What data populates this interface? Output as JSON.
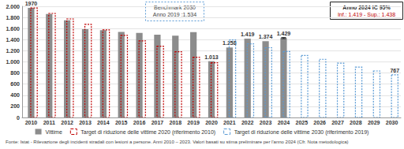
{
  "chart_data": {
    "type": "bar",
    "categories": [
      "2010",
      "2011",
      "2012",
      "2013",
      "2014",
      "2015",
      "2016",
      "2017",
      "2018",
      "2019",
      "2020",
      "2021",
      "2022",
      "2023",
      "2024",
      "2025",
      "2026",
      "2027",
      "2028",
      "2029",
      "2030"
    ],
    "series": [
      {
        "name": "Vittime",
        "type": "bar",
        "color": "#8c8c8c",
        "values": [
          1970,
          1860,
          1750,
          1590,
          1570,
          1540,
          1520,
          1490,
          1470,
          1534,
          1013,
          1258,
          1419,
          1374,
          1429,
          null,
          null,
          null,
          null,
          null,
          null
        ],
        "value_labels": [
          "1970",
          null,
          null,
          null,
          null,
          null,
          null,
          null,
          null,
          null,
          "1.013",
          "1.258",
          "1.419",
          "1.374",
          "1.429",
          null,
          null,
          null,
          null,
          null,
          null
        ],
        "ci_low": [
          null,
          null,
          null,
          null,
          null,
          null,
          null,
          null,
          null,
          null,
          null,
          null,
          null,
          null,
          1419,
          null,
          null,
          null,
          null,
          null,
          null
        ],
        "ci_high": [
          null,
          null,
          null,
          null,
          null,
          null,
          null,
          null,
          null,
          null,
          null,
          null,
          null,
          null,
          1438,
          null,
          null,
          null,
          null,
          null,
          null
        ]
      },
      {
        "name": "Target di riduzione delle vittime 2020 (riferimento 2010)",
        "type": "bar",
        "line_style": "dashed",
        "color": "#c00000",
        "values": [
          1970,
          1872,
          1773,
          1675,
          1576,
          1478,
          1379,
          1281,
          1182,
          1084,
          985,
          null,
          null,
          null,
          null,
          null,
          null,
          null,
          null,
          null,
          null
        ]
      },
      {
        "name": "Target di riduzione delle vittime 2030 (riferimento 2019)",
        "type": "bar",
        "line_style": "dashed",
        "color": "#5b9bd5",
        "values": [
          null,
          null,
          null,
          null,
          null,
          null,
          null,
          null,
          null,
          null,
          null,
          1394,
          1325,
          1255,
          1185,
          1116,
          1046,
          976,
          906,
          837,
          767
        ],
        "value_labels": [
          null,
          null,
          null,
          null,
          null,
          null,
          null,
          null,
          null,
          null,
          null,
          null,
          null,
          null,
          null,
          null,
          null,
          null,
          null,
          null,
          "767"
        ]
      }
    ],
    "ylim": [
      0,
      2000
    ],
    "yticks": [
      0,
      200,
      400,
      600,
      800,
      {
        "value": 1000,
        "label": "1.000"
      },
      {
        "value": 1200,
        "label": "1.200"
      },
      {
        "value": 1400,
        "label": "1.400"
      },
      {
        "value": 1600,
        "label": "1.600"
      },
      {
        "value": 1800,
        "label": "1.800"
      },
      {
        "value": 2000,
        "label": "2.000"
      }
    ],
    "grid": true,
    "legend": "bottom",
    "data_labels": true,
    "annotations": [
      {
        "text": [
          "Benchmark 2030",
          "Anno 2019 :1.534"
        ]
      },
      {
        "text": [
          "Anno 2024 IC 95%",
          "Inf.: 1.419 - Sup.: 1.438"
        ]
      }
    ],
    "source": "Fonte: Istat - Rilevazione degli incidenti stradali con lesioni a persone. Anni 2010 – 2023. Valori basati su stima preliminare per l'anno 2024 (Cfr. Nota metodologica)"
  }
}
